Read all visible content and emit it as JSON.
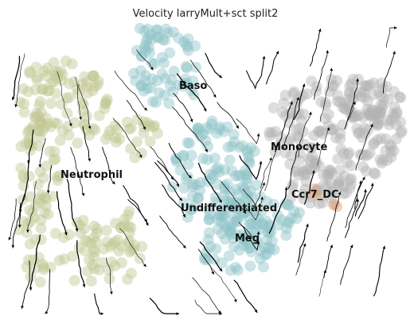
{
  "chart_data": {
    "type": "scatter",
    "title": "Velocity larryMult+sct split2",
    "xlabel": "",
    "ylabel": "",
    "axes_visible": false,
    "grid": false,
    "overlay": "velocity streamlines with arrowheads",
    "clusters": [
      {
        "name": "Baso",
        "color": "#8fc4c8"
      },
      {
        "name": "Neutrophil",
        "color": "#c2c793"
      },
      {
        "name": "Monocyte",
        "color": "#b4b4b4"
      },
      {
        "name": "Ccr7_DC",
        "color": "#e0a27a"
      },
      {
        "name": "Undifferentiated",
        "color": "#8fc4c8"
      },
      {
        "name": "Meg",
        "color": "#8fc4c8"
      }
    ],
    "cluster_labels": [
      "Baso",
      "Neutrophil",
      "Monocyte",
      "Ccr7_DC",
      "Undifferentiated",
      "Meg"
    ]
  }
}
